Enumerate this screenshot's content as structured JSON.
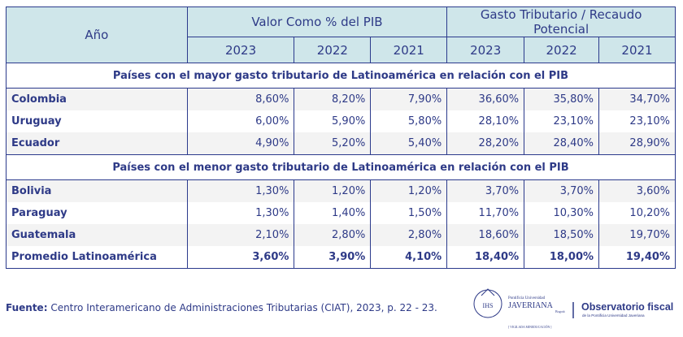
{
  "header": {
    "year_label": "Año",
    "group1": "Valor Como % del PIB",
    "group2": "Gasto Tributario / Recaudo Potencial",
    "years": [
      "2023",
      "2022",
      "2021",
      "2023",
      "2022",
      "2021"
    ]
  },
  "sections": [
    {
      "title": "Países con el mayor gasto tributario de Latinoamérica en relación con el PIB",
      "rows": [
        {
          "country": "Colombia",
          "values": [
            "8,60%",
            "8,20%",
            "7,90%",
            "36,60%",
            "35,80%",
            "34,70%"
          ]
        },
        {
          "country": "Uruguay",
          "values": [
            "6,00%",
            "5,90%",
            "5,80%",
            "28,10%",
            "23,10%",
            "23,10%"
          ]
        },
        {
          "country": "Ecuador",
          "values": [
            "4,90%",
            "5,20%",
            "5,40%",
            "28,20%",
            "28,40%",
            "28,90%"
          ]
        }
      ]
    },
    {
      "title": "Países con el menor gasto tributario de Latinoamérica en relación con el PIB",
      "rows": [
        {
          "country": "Bolivia",
          "values": [
            "1,30%",
            "1,20%",
            "1,20%",
            "3,70%",
            "3,70%",
            "3,60%"
          ]
        },
        {
          "country": "Paraguay",
          "values": [
            "1,30%",
            "1,40%",
            "1,50%",
            "11,70%",
            "10,30%",
            "10,20%"
          ]
        },
        {
          "country": "Guatemala",
          "values": [
            "2,10%",
            "2,80%",
            "2,80%",
            "18,60%",
            "18,50%",
            "19,70%"
          ]
        }
      ]
    }
  ],
  "average": {
    "country": "Promedio Latinoamérica",
    "values": [
      "3,60%",
      "3,90%",
      "4,10%",
      "18,40%",
      "18,00%",
      "19,40%"
    ]
  },
  "source": {
    "label": "Fuente:",
    "text": " Centro Interamericano de Administraciones Tributarias (CIAT), 2023, p. 22 - 23."
  },
  "logo": {
    "line1": "Pontificia Universidad",
    "line2": "JAVERIANA",
    "line3": "Bogotá",
    "line4": "[ VIGILADA MINEDUCACIÓN ]",
    "brand": "Observatorio fiscal",
    "brand_sub": "de la Pontificia Universidad Javeriana",
    "seal": "IHS"
  },
  "colors": {
    "header_bg": "#cfe6ea",
    "border": "#2b3a8c",
    "text": "#2e3a87"
  }
}
